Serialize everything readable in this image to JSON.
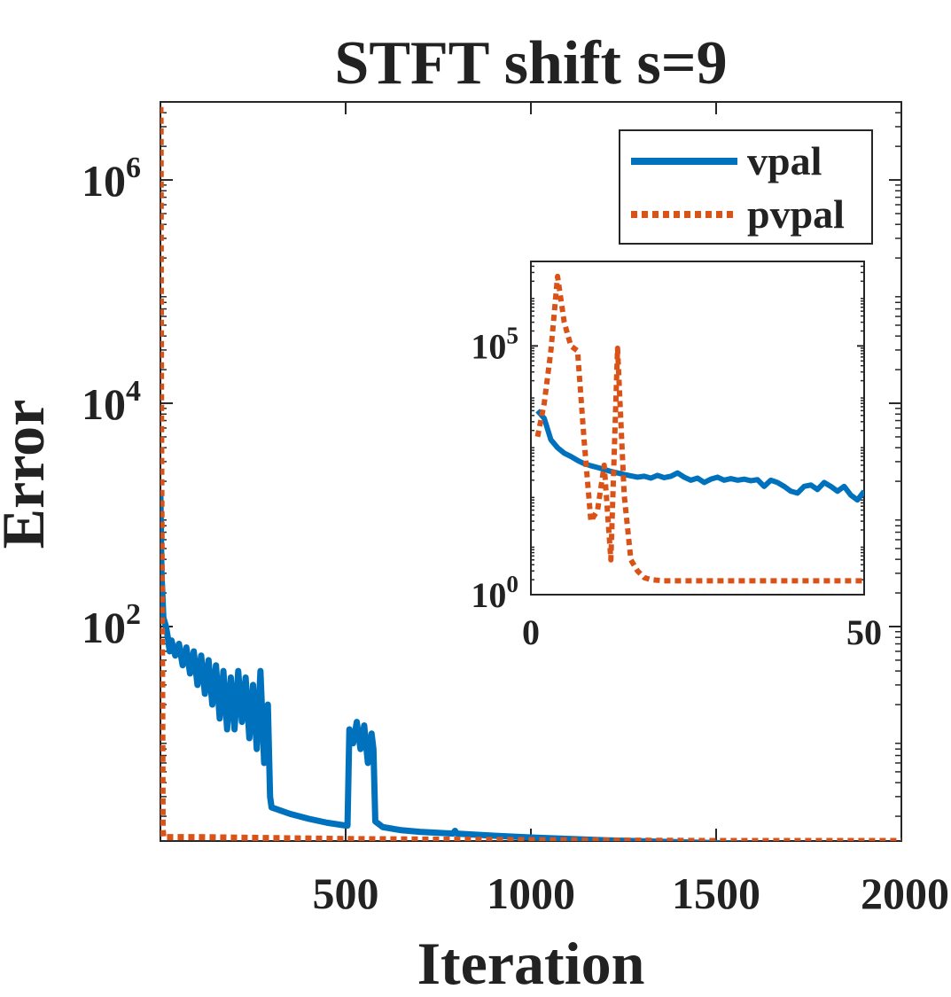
{
  "chart_data": [
    {
      "type": "line",
      "title": "STFT shift s=9",
      "xlabel": "Iteration",
      "ylabel": "Error",
      "xlim": [
        0,
        2000
      ],
      "ylim": [
        1.2,
        5000000
      ],
      "yscale": "log",
      "xticks": [
        500,
        1000,
        1500,
        2000
      ],
      "xtick_labels": [
        "500",
        "1000",
        "1500",
        "2000"
      ],
      "yticks": [
        100,
        10000,
        1000000
      ],
      "ytick_labels": [
        {
          "base": "10",
          "exp": "2"
        },
        {
          "base": "10",
          "exp": "4"
        },
        {
          "base": "10",
          "exp": "6"
        }
      ],
      "legend_position": "top-right",
      "series": [
        {
          "name": "vpal",
          "color": "#0072BD",
          "style": "solid",
          "points": [
            [
              0,
              1500
            ],
            [
              3,
              300
            ],
            [
              8,
              120
            ],
            [
              15,
              100
            ],
            [
              20,
              80
            ],
            [
              25,
              60
            ],
            [
              30,
              75
            ],
            [
              40,
              55
            ],
            [
              50,
              70
            ],
            [
              60,
              45
            ],
            [
              70,
              65
            ],
            [
              80,
              38
            ],
            [
              90,
              60
            ],
            [
              100,
              30
            ],
            [
              110,
              55
            ],
            [
              120,
              25
            ],
            [
              130,
              50
            ],
            [
              140,
              20
            ],
            [
              150,
              45
            ],
            [
              160,
              15
            ],
            [
              170,
              40
            ],
            [
              180,
              12
            ],
            [
              190,
              35
            ],
            [
              200,
              12
            ],
            [
              210,
              40
            ],
            [
              220,
              14
            ],
            [
              230,
              35
            ],
            [
              240,
              10
            ],
            [
              250,
              30
            ],
            [
              260,
              8
            ],
            [
              270,
              40
            ],
            [
              280,
              6
            ],
            [
              290,
              20
            ],
            [
              296,
              3
            ],
            [
              300,
              2.4
            ],
            [
              350,
              2.1
            ],
            [
              400,
              1.9
            ],
            [
              450,
              1.75
            ],
            [
              500,
              1.65
            ],
            [
              505,
              1.65
            ],
            [
              510,
              12
            ],
            [
              520,
              9
            ],
            [
              530,
              14
            ],
            [
              540,
              8
            ],
            [
              550,
              13
            ],
            [
              560,
              6
            ],
            [
              570,
              11
            ],
            [
              575,
              8
            ],
            [
              580,
              1.8
            ],
            [
              600,
              1.6
            ],
            [
              650,
              1.5
            ],
            [
              700,
              1.45
            ],
            [
              750,
              1.42
            ],
            [
              790,
              1.4
            ],
            [
              795,
              1.48
            ],
            [
              800,
              1.4
            ],
            [
              900,
              1.34
            ],
            [
              1000,
              1.29
            ],
            [
              1200,
              1.22
            ],
            [
              1400,
              1.17
            ],
            [
              1600,
              1.13
            ],
            [
              1800,
              1.1
            ],
            [
              2000,
              1.07
            ]
          ]
        },
        {
          "name": "pvpal",
          "color": "#D95319",
          "style": "dotted",
          "points": [
            [
              0,
              4500000
            ],
            [
              0.5,
              3000000
            ],
            [
              1,
              150000
            ],
            [
              1.5,
              20000
            ],
            [
              2,
              5000
            ],
            [
              3,
              800
            ],
            [
              4,
              100
            ],
            [
              5,
              20
            ],
            [
              6,
              1.5
            ],
            [
              8,
              1.3
            ],
            [
              100,
              1.3
            ],
            [
              500,
              1.25
            ],
            [
              1000,
              1.22
            ],
            [
              1500,
              1.2
            ],
            [
              2000,
              1.2
            ]
          ]
        }
      ]
    },
    {
      "type": "line",
      "title": "",
      "xlabel": "",
      "ylabel": "",
      "xlim": [
        0,
        50
      ],
      "ylim": [
        1,
        5000000
      ],
      "yscale": "log",
      "xticks": [
        0,
        50
      ],
      "xtick_labels": [
        "0",
        "50"
      ],
      "yticks": [
        1,
        100000
      ],
      "ytick_labels": [
        {
          "base": "10",
          "exp": "0"
        },
        {
          "base": "10",
          "exp": "5"
        }
      ],
      "series": [
        {
          "name": "vpal",
          "color": "#0072BD",
          "style": "solid",
          "points": [
            [
              1,
              5000
            ],
            [
              2,
              3500
            ],
            [
              3,
              1300
            ],
            [
              4,
              900
            ],
            [
              5,
              700
            ],
            [
              6,
              600
            ],
            [
              7,
              500
            ],
            [
              8,
              430
            ],
            [
              9,
              390
            ],
            [
              10,
              360
            ],
            [
              11,
              330
            ],
            [
              12,
              300
            ],
            [
              13,
              280
            ],
            [
              14,
              260
            ],
            [
              15,
              245
            ],
            [
              16,
              230
            ],
            [
              17,
              240
            ],
            [
              18,
              220
            ],
            [
              19,
              250
            ],
            [
              20,
              225
            ],
            [
              21,
              240
            ],
            [
              22,
              280
            ],
            [
              23,
              230
            ],
            [
              24,
              200
            ],
            [
              25,
              220
            ],
            [
              26,
              180
            ],
            [
              27,
              210
            ],
            [
              28,
              230
            ],
            [
              29,
              200
            ],
            [
              30,
              215
            ],
            [
              31,
              200
            ],
            [
              32,
              210
            ],
            [
              33,
              195
            ],
            [
              34,
              205
            ],
            [
              35,
              150
            ],
            [
              36,
              200
            ],
            [
              37,
              180
            ],
            [
              38,
              150
            ],
            [
              39,
              120
            ],
            [
              40,
              110
            ],
            [
              41,
              150
            ],
            [
              42,
              160
            ],
            [
              43,
              130
            ],
            [
              44,
              180
            ],
            [
              45,
              150
            ],
            [
              46,
              120
            ],
            [
              47,
              150
            ],
            [
              48,
              100
            ],
            [
              49,
              80
            ],
            [
              50,
              120
            ]
          ]
        },
        {
          "name": "pvpal",
          "color": "#D95319",
          "style": "dotted",
          "points": [
            [
              1,
              1500
            ],
            [
              2,
              7000
            ],
            [
              3,
              80000
            ],
            [
              4,
              2500000
            ],
            [
              5,
              300000
            ],
            [
              6,
              100000
            ],
            [
              7,
              80000
            ],
            [
              8,
              1200
            ],
            [
              9,
              30
            ],
            [
              10,
              50
            ],
            [
              11,
              400
            ],
            [
              12,
              5
            ],
            [
              13,
              90000
            ],
            [
              14,
              100
            ],
            [
              15,
              5
            ],
            [
              16,
              3
            ],
            [
              17,
              2.2
            ],
            [
              18,
              2
            ],
            [
              20,
              1.9
            ],
            [
              25,
              1.9
            ],
            [
              30,
              1.9
            ],
            [
              40,
              1.9
            ],
            [
              50,
              1.9
            ]
          ]
        }
      ]
    }
  ]
}
